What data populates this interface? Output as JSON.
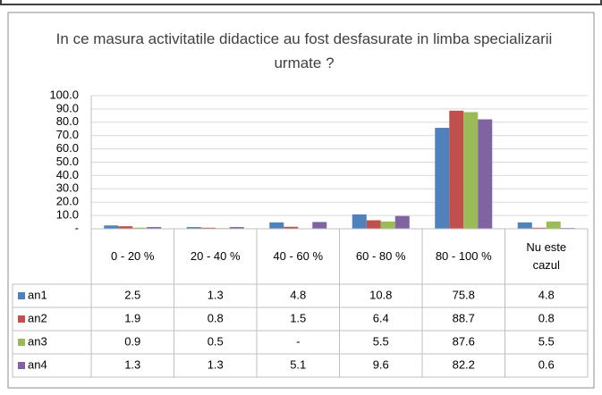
{
  "chart_data": {
    "type": "bar",
    "title": "In ce masura activitatile didactice au fost desfasurate in limba specializarii urmate ?",
    "categories": [
      "0 - 20 %",
      "20 - 40 %",
      "40 - 60 %",
      "60 - 80 %",
      "80 - 100 %",
      "Nu este cazul"
    ],
    "series": [
      {
        "name": "an1",
        "color": "#4f81bd",
        "values": [
          2.5,
          1.3,
          4.8,
          10.8,
          75.8,
          4.8
        ]
      },
      {
        "name": "an2",
        "color": "#c0504d",
        "values": [
          1.9,
          0.8,
          1.5,
          6.4,
          88.7,
          0.8
        ]
      },
      {
        "name": "an3",
        "color": "#9bbb59",
        "values": [
          0.9,
          0.5,
          0,
          5.5,
          87.6,
          5.5
        ],
        "value_labels": [
          "0.9",
          "0.5",
          "-",
          "5.5",
          "87.6",
          "5.5"
        ]
      },
      {
        "name": "an4",
        "color": "#8064a2",
        "values": [
          1.3,
          1.3,
          5.1,
          9.6,
          82.2,
          0.6
        ]
      }
    ],
    "ylim": [
      0,
      100
    ],
    "yticks": [
      {
        "value": 0,
        "label": "-"
      },
      {
        "value": 10,
        "label": "10.0"
      },
      {
        "value": 20,
        "label": "20.0"
      },
      {
        "value": 30,
        "label": "30.0"
      },
      {
        "value": 40,
        "label": "40.0"
      },
      {
        "value": 50,
        "label": "50.0"
      },
      {
        "value": 60,
        "label": "60.0"
      },
      {
        "value": 70,
        "label": "70.0"
      },
      {
        "value": 80,
        "label": "80.0"
      },
      {
        "value": 90,
        "label": "90.0"
      },
      {
        "value": 100,
        "label": "100.0"
      }
    ],
    "grid": true,
    "data_table": true
  }
}
